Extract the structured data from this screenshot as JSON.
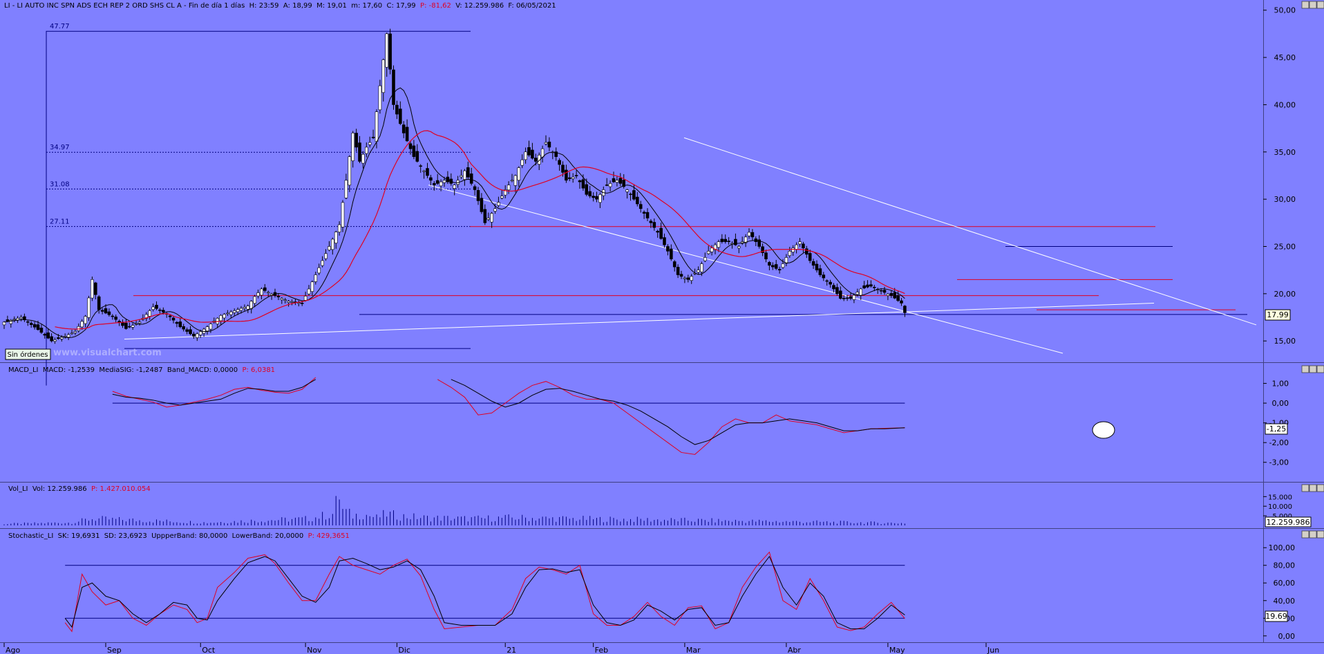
{
  "panels": {
    "price": {
      "header": "LI - LI AUTO INC SPN ADS ECH REP 2 ORD SHS CL A - Fin de día 1 días  H: 23:59  A: 18,99  M: 19,01  m: 17,60  C: 17,99",
      "header_p": "P: -81,62",
      "header_tail": "V: 12.259.986  F: 06/05/2021",
      "last_price_label": "17.99",
      "fib_labels": [
        "47.77",
        "34.97",
        "31.08",
        "27.11"
      ],
      "orders_button": "Sin órdenes",
      "watermark": "www.visualchart.com"
    },
    "macd": {
      "header": "MACD_LI  MACD: -1,2539  MediaSIG: -1,2487  Band_MACD: 0,0000",
      "header_p": "P: 6,0381",
      "last_value_label": "-1,25"
    },
    "volume": {
      "header": "Vol_LI  Vol: 12.259.986",
      "header_p": "P: 1.427.010.054",
      "last_value_label": "12.259.986"
    },
    "stochastic": {
      "header": "Stochastic_LI  SK: 19,6931  SD: 23,6923  UppperBand: 80,0000  LowerBand: 20,0000",
      "header_p": "P: 429,3651",
      "last_value_label": "19.69"
    }
  },
  "colors": {
    "background": "#8080ff",
    "up_candle": "#ffffff",
    "down_candle": "#000000",
    "ma_short": "#000000",
    "ma_long": "#e00020",
    "trendline": "#ffffff",
    "support": "#e00020",
    "band": "#000080"
  },
  "chart_data": [
    {
      "type": "candlestick",
      "title": "LI - LI AUTO INC SPN ADS ECH REP 2 ORD SHS CL A",
      "x_months": [
        "Ago",
        "Sep",
        "Oct",
        "Nov",
        "Dic",
        "21",
        "Feb",
        "Mar",
        "Abr",
        "May",
        "Jun"
      ],
      "y_ticks": [
        "15,00",
        "20,00",
        "25,00",
        "30,00",
        "35,00",
        "40,00",
        "45,00",
        "50,00"
      ],
      "ylim": [
        12.6,
        50.2
      ],
      "close_anchors": [
        [
          0,
          17.0
        ],
        [
          5,
          17.5
        ],
        [
          10,
          16.2
        ],
        [
          14,
          15.0
        ],
        [
          18,
          15.5
        ],
        [
          21,
          16.0
        ],
        [
          24,
          17.6
        ],
        [
          26,
          21.5
        ],
        [
          28,
          18.3
        ],
        [
          32,
          17.6
        ],
        [
          36,
          16.3
        ],
        [
          40,
          17.0
        ],
        [
          44,
          18.6
        ],
        [
          48,
          17.9
        ],
        [
          52,
          16.5
        ],
        [
          56,
          15.5
        ],
        [
          60,
          16.5
        ],
        [
          64,
          17.7
        ],
        [
          68,
          18.2
        ],
        [
          72,
          18.7
        ],
        [
          74,
          19.7
        ],
        [
          76,
          20.5
        ],
        [
          80,
          19.8
        ],
        [
          84,
          19.2
        ],
        [
          88,
          19.0
        ],
        [
          92,
          22.0
        ],
        [
          96,
          25.0
        ],
        [
          99,
          27.3
        ],
        [
          101,
          32.0
        ],
        [
          103,
          37.0
        ],
        [
          105,
          34.0
        ],
        [
          107,
          35.5
        ],
        [
          109,
          36.5
        ],
        [
          111,
          42.0
        ],
        [
          113,
          47.5
        ],
        [
          115,
          40.0
        ],
        [
          118,
          37.0
        ],
        [
          121,
          34.5
        ],
        [
          124,
          33.0
        ],
        [
          127,
          31.5
        ],
        [
          130,
          32.0
        ],
        [
          133,
          31.5
        ],
        [
          136,
          33.0
        ],
        [
          139,
          31.0
        ],
        [
          142,
          27.5
        ],
        [
          145,
          29.0
        ],
        [
          148,
          31.0
        ],
        [
          151,
          32.5
        ],
        [
          154,
          35.0
        ],
        [
          157,
          34.0
        ],
        [
          160,
          36.0
        ],
        [
          163,
          34.5
        ],
        [
          166,
          32.0
        ],
        [
          169,
          32.5
        ],
        [
          172,
          30.5
        ],
        [
          175,
          30.0
        ],
        [
          178,
          31.5
        ],
        [
          181,
          32.0
        ],
        [
          184,
          31.0
        ],
        [
          187,
          29.5
        ],
        [
          190,
          28.0
        ],
        [
          193,
          26.5
        ],
        [
          196,
          24.5
        ],
        [
          199,
          22.0
        ],
        [
          202,
          21.5
        ],
        [
          205,
          22.5
        ],
        [
          208,
          24.5
        ],
        [
          211,
          25.5
        ],
        [
          214,
          25.5
        ],
        [
          217,
          25.0
        ],
        [
          220,
          26.5
        ],
        [
          223,
          25.0
        ],
        [
          226,
          23.0
        ],
        [
          229,
          22.5
        ],
        [
          232,
          24.5
        ],
        [
          235,
          25.5
        ],
        [
          238,
          23.5
        ],
        [
          241,
          22.0
        ],
        [
          244,
          21.0
        ],
        [
          247,
          19.5
        ],
        [
          250,
          19.5
        ],
        [
          253,
          20.5
        ],
        [
          256,
          20.8
        ],
        [
          259,
          20.3
        ],
        [
          262,
          19.8
        ],
        [
          265,
          19.0
        ],
        [
          266,
          17.99
        ]
      ],
      "horizontal_levels": [
        19.8,
        27.1,
        21.5,
        17.8,
        18.3,
        25.0,
        14.2
      ],
      "fib_levels": [
        47.77,
        34.97,
        31.08,
        27.11
      ],
      "moving_averages": [
        "short (black)",
        "long (red)"
      ]
    },
    {
      "type": "line",
      "title": "MACD_LI",
      "y_ticks": [
        "1,00",
        "0,00",
        "-1,00",
        "-2,00",
        "-3,00"
      ],
      "ylim": [
        -3.5,
        1.3
      ],
      "band": 0.0,
      "macd_anchors": [
        [
          32,
          0.45
        ],
        [
          36,
          0.3
        ],
        [
          40,
          0.25
        ],
        [
          44,
          0.15
        ],
        [
          48,
          0.0
        ],
        [
          52,
          -0.1
        ],
        [
          56,
          0.0
        ],
        [
          60,
          0.1
        ],
        [
          64,
          0.2
        ],
        [
          68,
          0.5
        ],
        [
          72,
          0.75
        ],
        [
          76,
          0.7
        ],
        [
          80,
          0.6
        ],
        [
          84,
          0.6
        ],
        [
          88,
          0.8
        ],
        [
          92,
          1.2
        ],
        [
          132,
          1.2
        ],
        [
          136,
          0.9
        ],
        [
          140,
          0.5
        ],
        [
          144,
          0.1
        ],
        [
          148,
          -0.2
        ],
        [
          152,
          0.0
        ],
        [
          156,
          0.4
        ],
        [
          160,
          0.7
        ],
        [
          164,
          0.75
        ],
        [
          168,
          0.6
        ],
        [
          172,
          0.4
        ],
        [
          176,
          0.2
        ],
        [
          180,
          0.1
        ],
        [
          184,
          -0.1
        ],
        [
          188,
          -0.4
        ],
        [
          192,
          -0.8
        ],
        [
          196,
          -1.2
        ],
        [
          200,
          -1.7
        ],
        [
          204,
          -2.1
        ],
        [
          208,
          -1.9
        ],
        [
          212,
          -1.5
        ],
        [
          216,
          -1.1
        ],
        [
          220,
          -1.0
        ],
        [
          224,
          -1.0
        ],
        [
          228,
          -0.9
        ],
        [
          232,
          -0.8
        ],
        [
          236,
          -0.9
        ],
        [
          240,
          -1.0
        ],
        [
          244,
          -1.2
        ],
        [
          248,
          -1.4
        ],
        [
          252,
          -1.4
        ],
        [
          256,
          -1.3
        ],
        [
          260,
          -1.3
        ],
        [
          266,
          -1.25
        ]
      ],
      "signal_anchors": [
        [
          32,
          0.6
        ],
        [
          36,
          0.35
        ],
        [
          40,
          0.2
        ],
        [
          44,
          0.05
        ],
        [
          48,
          -0.2
        ],
        [
          52,
          -0.1
        ],
        [
          56,
          0.05
        ],
        [
          60,
          0.2
        ],
        [
          64,
          0.4
        ],
        [
          68,
          0.7
        ],
        [
          72,
          0.8
        ],
        [
          76,
          0.65
        ],
        [
          80,
          0.55
        ],
        [
          84,
          0.5
        ],
        [
          88,
          0.7
        ],
        [
          92,
          1.3
        ],
        [
          128,
          1.2
        ],
        [
          132,
          0.8
        ],
        [
          136,
          0.3
        ],
        [
          140,
          -0.6
        ],
        [
          144,
          -0.5
        ],
        [
          148,
          0.0
        ],
        [
          152,
          0.5
        ],
        [
          156,
          0.9
        ],
        [
          160,
          1.1
        ],
        [
          164,
          0.8
        ],
        [
          168,
          0.4
        ],
        [
          172,
          0.2
        ],
        [
          176,
          0.2
        ],
        [
          180,
          0.0
        ],
        [
          184,
          -0.5
        ],
        [
          188,
          -1.0
        ],
        [
          192,
          -1.5
        ],
        [
          196,
          -2.0
        ],
        [
          200,
          -2.5
        ],
        [
          204,
          -2.6
        ],
        [
          208,
          -2.0
        ],
        [
          212,
          -1.2
        ],
        [
          216,
          -0.8
        ],
        [
          220,
          -1.0
        ],
        [
          224,
          -1.0
        ],
        [
          228,
          -0.6
        ],
        [
          232,
          -0.9
        ],
        [
          236,
          -1.0
        ],
        [
          240,
          -1.1
        ],
        [
          244,
          -1.3
        ],
        [
          248,
          -1.5
        ],
        [
          252,
          -1.4
        ],
        [
          256,
          -1.3
        ],
        [
          266,
          -1.25
        ]
      ]
    },
    {
      "type": "bar",
      "title": "Vol_LI",
      "y_ticks": [
        "15.000",
        "10.000",
        "5.000"
      ],
      "ylim": [
        0,
        18000
      ],
      "peaks_thousands": [
        [
          0,
          800
        ],
        [
          20,
          1500
        ],
        [
          26,
          3500
        ],
        [
          60,
          1500
        ],
        [
          74,
          2500
        ],
        [
          90,
          3500
        ],
        [
          97,
          6000
        ],
        [
          99,
          16000
        ],
        [
          100,
          8000
        ],
        [
          103,
          5000
        ],
        [
          106,
          6000
        ],
        [
          110,
          4000
        ],
        [
          113,
          6000
        ],
        [
          116,
          5000
        ],
        [
          124,
          4000
        ],
        [
          138,
          3500
        ],
        [
          150,
          4000
        ],
        [
          166,
          3500
        ],
        [
          190,
          3000
        ],
        [
          210,
          2500
        ],
        [
          240,
          1800
        ],
        [
          266,
          1200
        ]
      ]
    },
    {
      "type": "line",
      "title": "Stochastic_LI",
      "y_ticks": [
        "100,00",
        "80,00",
        "60,00",
        "40,00",
        "20,00",
        "0,00"
      ],
      "ylim": [
        -8,
        108
      ],
      "upper_band": 80,
      "lower_band": 20,
      "sd_anchors": [
        [
          18,
          20
        ],
        [
          20,
          10
        ],
        [
          23,
          55
        ],
        [
          26,
          60
        ],
        [
          30,
          45
        ],
        [
          34,
          40
        ],
        [
          38,
          25
        ],
        [
          42,
          15
        ],
        [
          46,
          25
        ],
        [
          50,
          38
        ],
        [
          54,
          35
        ],
        [
          57,
          20
        ],
        [
          60,
          18
        ],
        [
          63,
          40
        ],
        [
          68,
          65
        ],
        [
          72,
          83
        ],
        [
          77,
          90
        ],
        [
          80,
          85
        ],
        [
          84,
          65
        ],
        [
          88,
          45
        ],
        [
          92,
          38
        ],
        [
          96,
          55
        ],
        [
          99,
          85
        ],
        [
          103,
          88
        ],
        [
          107,
          82
        ],
        [
          111,
          75
        ],
        [
          115,
          78
        ],
        [
          119,
          85
        ],
        [
          123,
          75
        ],
        [
          127,
          45
        ],
        [
          130,
          15
        ],
        [
          135,
          12
        ],
        [
          140,
          12
        ],
        [
          145,
          12
        ],
        [
          150,
          25
        ],
        [
          154,
          55
        ],
        [
          158,
          75
        ],
        [
          162,
          76
        ],
        [
          166,
          72
        ],
        [
          170,
          75
        ],
        [
          174,
          35
        ],
        [
          178,
          15
        ],
        [
          182,
          12
        ],
        [
          186,
          18
        ],
        [
          190,
          35
        ],
        [
          194,
          28
        ],
        [
          198,
          18
        ],
        [
          202,
          30
        ],
        [
          206,
          32
        ],
        [
          210,
          12
        ],
        [
          214,
          15
        ],
        [
          218,
          45
        ],
        [
          222,
          70
        ],
        [
          226,
          90
        ],
        [
          230,
          55
        ],
        [
          234,
          35
        ],
        [
          238,
          60
        ],
        [
          242,
          45
        ],
        [
          246,
          15
        ],
        [
          250,
          8
        ],
        [
          254,
          8
        ],
        [
          258,
          20
        ],
        [
          262,
          35
        ],
        [
          266,
          23.7
        ]
      ],
      "sk_anchors": [
        [
          18,
          15
        ],
        [
          20,
          5
        ],
        [
          23,
          70
        ],
        [
          26,
          50
        ],
        [
          30,
          35
        ],
        [
          34,
          40
        ],
        [
          38,
          20
        ],
        [
          42,
          12
        ],
        [
          46,
          25
        ],
        [
          50,
          35
        ],
        [
          54,
          30
        ],
        [
          57,
          15
        ],
        [
          60,
          20
        ],
        [
          63,
          55
        ],
        [
          68,
          72
        ],
        [
          72,
          88
        ],
        [
          77,
          92
        ],
        [
          80,
          82
        ],
        [
          84,
          60
        ],
        [
          88,
          40
        ],
        [
          92,
          40
        ],
        [
          96,
          70
        ],
        [
          99,
          90
        ],
        [
          103,
          80
        ],
        [
          107,
          75
        ],
        [
          111,
          70
        ],
        [
          115,
          80
        ],
        [
          119,
          87
        ],
        [
          123,
          68
        ],
        [
          127,
          30
        ],
        [
          130,
          8
        ],
        [
          135,
          10
        ],
        [
          140,
          12
        ],
        [
          145,
          12
        ],
        [
          150,
          30
        ],
        [
          154,
          65
        ],
        [
          158,
          78
        ],
        [
          162,
          75
        ],
        [
          166,
          70
        ],
        [
          170,
          80
        ],
        [
          174,
          25
        ],
        [
          178,
          12
        ],
        [
          182,
          12
        ],
        [
          186,
          22
        ],
        [
          190,
          38
        ],
        [
          194,
          22
        ],
        [
          198,
          12
        ],
        [
          202,
          32
        ],
        [
          206,
          34
        ],
        [
          210,
          8
        ],
        [
          214,
          15
        ],
        [
          218,
          55
        ],
        [
          222,
          78
        ],
        [
          226,
          95
        ],
        [
          230,
          40
        ],
        [
          234,
          30
        ],
        [
          238,
          65
        ],
        [
          242,
          40
        ],
        [
          246,
          10
        ],
        [
          250,
          6
        ],
        [
          254,
          10
        ],
        [
          258,
          25
        ],
        [
          262,
          38
        ],
        [
          266,
          19.7
        ]
      ]
    }
  ]
}
